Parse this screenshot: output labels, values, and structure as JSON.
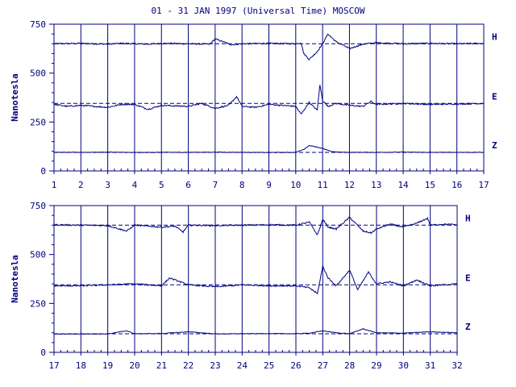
{
  "title": "01 - 31 JAN 1997 (Universal Time) MOSCOW",
  "colors": {
    "ink": "#00007f",
    "background": "#ffffff"
  },
  "chart_data": [
    {
      "type": "line",
      "ylabel": "Nanotesla",
      "ylim": [
        0,
        750
      ],
      "yticks": [
        0,
        250,
        500,
        750
      ],
      "xlim": [
        1,
        17
      ],
      "xticks": [
        "1",
        "2",
        "3",
        "4",
        "5",
        "6",
        "7",
        "8",
        "9",
        "10",
        "11",
        "12",
        "13",
        "14",
        "15",
        "16",
        "17"
      ],
      "grid": "vertical lines at each day",
      "series": [
        {
          "name": "H",
          "baseline": 650,
          "x": [
            1,
            2,
            3,
            3.5,
            4,
            4.5,
            5,
            6,
            6.8,
            7,
            7.3,
            7.6,
            8,
            9,
            10,
            10.2,
            10.3,
            10.5,
            10.8,
            11,
            11.2,
            11.5,
            11.8,
            12,
            12.5,
            13,
            14,
            15,
            16,
            17
          ],
          "y": [
            650,
            652,
            648,
            652,
            650,
            648,
            652,
            650,
            648,
            675,
            660,
            645,
            650,
            652,
            650,
            655,
            600,
            570,
            610,
            650,
            700,
            660,
            640,
            625,
            648,
            655,
            650,
            652,
            650,
            652
          ]
        },
        {
          "name": "E",
          "baseline": 345,
          "x": [
            1,
            1.5,
            2,
            3,
            3.5,
            4,
            4.5,
            5,
            6,
            6.5,
            7,
            7.5,
            7.8,
            8,
            8.5,
            9,
            10,
            10.2,
            10.5,
            10.8,
            10.9,
            11,
            11.2,
            11.5,
            12,
            12.5,
            12.8,
            13,
            14,
            15,
            16,
            17
          ],
          "y": [
            340,
            330,
            335,
            325,
            340,
            340,
            315,
            335,
            330,
            345,
            320,
            335,
            380,
            330,
            325,
            340,
            330,
            290,
            350,
            310,
            440,
            360,
            330,
            345,
            335,
            330,
            355,
            340,
            345,
            340,
            342,
            345
          ]
        },
        {
          "name": "Z",
          "baseline": 95,
          "x": [
            1,
            2,
            3,
            4,
            5,
            6,
            7,
            8,
            9,
            10,
            10.3,
            10.5,
            10.7,
            11,
            11.3,
            11.6,
            12,
            13,
            14,
            15,
            16,
            17
          ],
          "y": [
            95,
            95,
            96,
            94,
            95,
            95,
            96,
            95,
            94,
            95,
            110,
            130,
            125,
            115,
            100,
            96,
            95,
            95,
            96,
            95,
            95,
            95
          ]
        }
      ]
    },
    {
      "type": "line",
      "ylabel": "Nanotesla",
      "ylim": [
        0,
        750
      ],
      "yticks": [
        0,
        250,
        500,
        750
      ],
      "xlim": [
        17,
        32
      ],
      "xticks": [
        "17",
        "18",
        "19",
        "20",
        "21",
        "22",
        "23",
        "24",
        "25",
        "26",
        "27",
        "28",
        "29",
        "30",
        "31",
        "32"
      ],
      "grid": "vertical lines at each day",
      "series": [
        {
          "name": "H",
          "baseline": 650,
          "x": [
            17,
            18,
            19,
            19.7,
            20,
            21,
            21.5,
            21.8,
            22,
            23,
            24,
            25,
            26,
            26.5,
            26.8,
            27,
            27.2,
            27.5,
            28,
            28.5,
            28.8,
            29,
            29.5,
            30,
            30.5,
            30.9,
            31,
            31.5,
            32
          ],
          "y": [
            652,
            650,
            648,
            620,
            650,
            640,
            645,
            615,
            650,
            648,
            650,
            652,
            650,
            665,
            600,
            680,
            640,
            630,
            690,
            620,
            610,
            630,
            655,
            640,
            660,
            685,
            650,
            655,
            652
          ]
        },
        {
          "name": "E",
          "baseline": 345,
          "x": [
            17,
            18,
            19,
            20,
            21,
            21.3,
            22,
            23,
            24,
            25,
            26,
            26.5,
            26.8,
            27,
            27.2,
            27.5,
            28,
            28.3,
            28.7,
            29,
            29.5,
            30,
            30.5,
            31,
            31.5,
            32
          ],
          "y": [
            340,
            340,
            345,
            350,
            340,
            380,
            345,
            335,
            345,
            340,
            340,
            330,
            300,
            440,
            380,
            340,
            420,
            320,
            410,
            350,
            360,
            340,
            370,
            340,
            345,
            350
          ]
        },
        {
          "name": "Z",
          "baseline": 95,
          "x": [
            17,
            18,
            19,
            19.7,
            20,
            21,
            22,
            23,
            24,
            25,
            26,
            26.5,
            27,
            27.5,
            28,
            28.5,
            29,
            30,
            31,
            32
          ],
          "y": [
            93,
            94,
            94,
            110,
            95,
            96,
            105,
            94,
            95,
            96,
            95,
            98,
            110,
            100,
            95,
            120,
            100,
            98,
            105,
            100
          ]
        }
      ]
    }
  ]
}
